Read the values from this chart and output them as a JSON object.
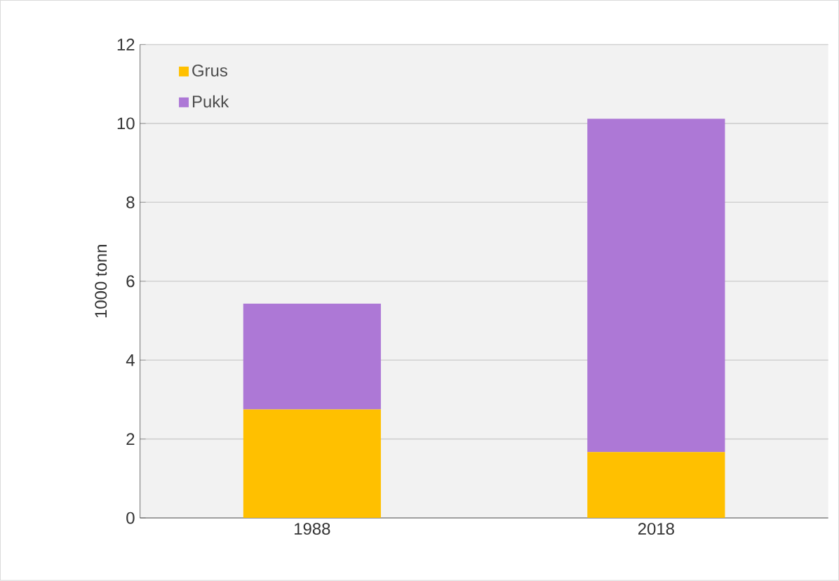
{
  "chart_data": {
    "type": "bar",
    "stacked": true,
    "ylabel": "1000 tonn",
    "categories": [
      "1988",
      "2018"
    ],
    "series": [
      {
        "name": "Grus",
        "color": "#ffc000",
        "values": [
          2.75,
          1.67
        ]
      },
      {
        "name": "Pukk",
        "color": "#ad78d6",
        "values": [
          2.68,
          8.45
        ]
      }
    ],
    "ylim": [
      0,
      12
    ],
    "yticks": [
      0,
      2,
      4,
      6,
      8,
      10,
      12
    ],
    "grid": "y",
    "legend": "top left"
  }
}
